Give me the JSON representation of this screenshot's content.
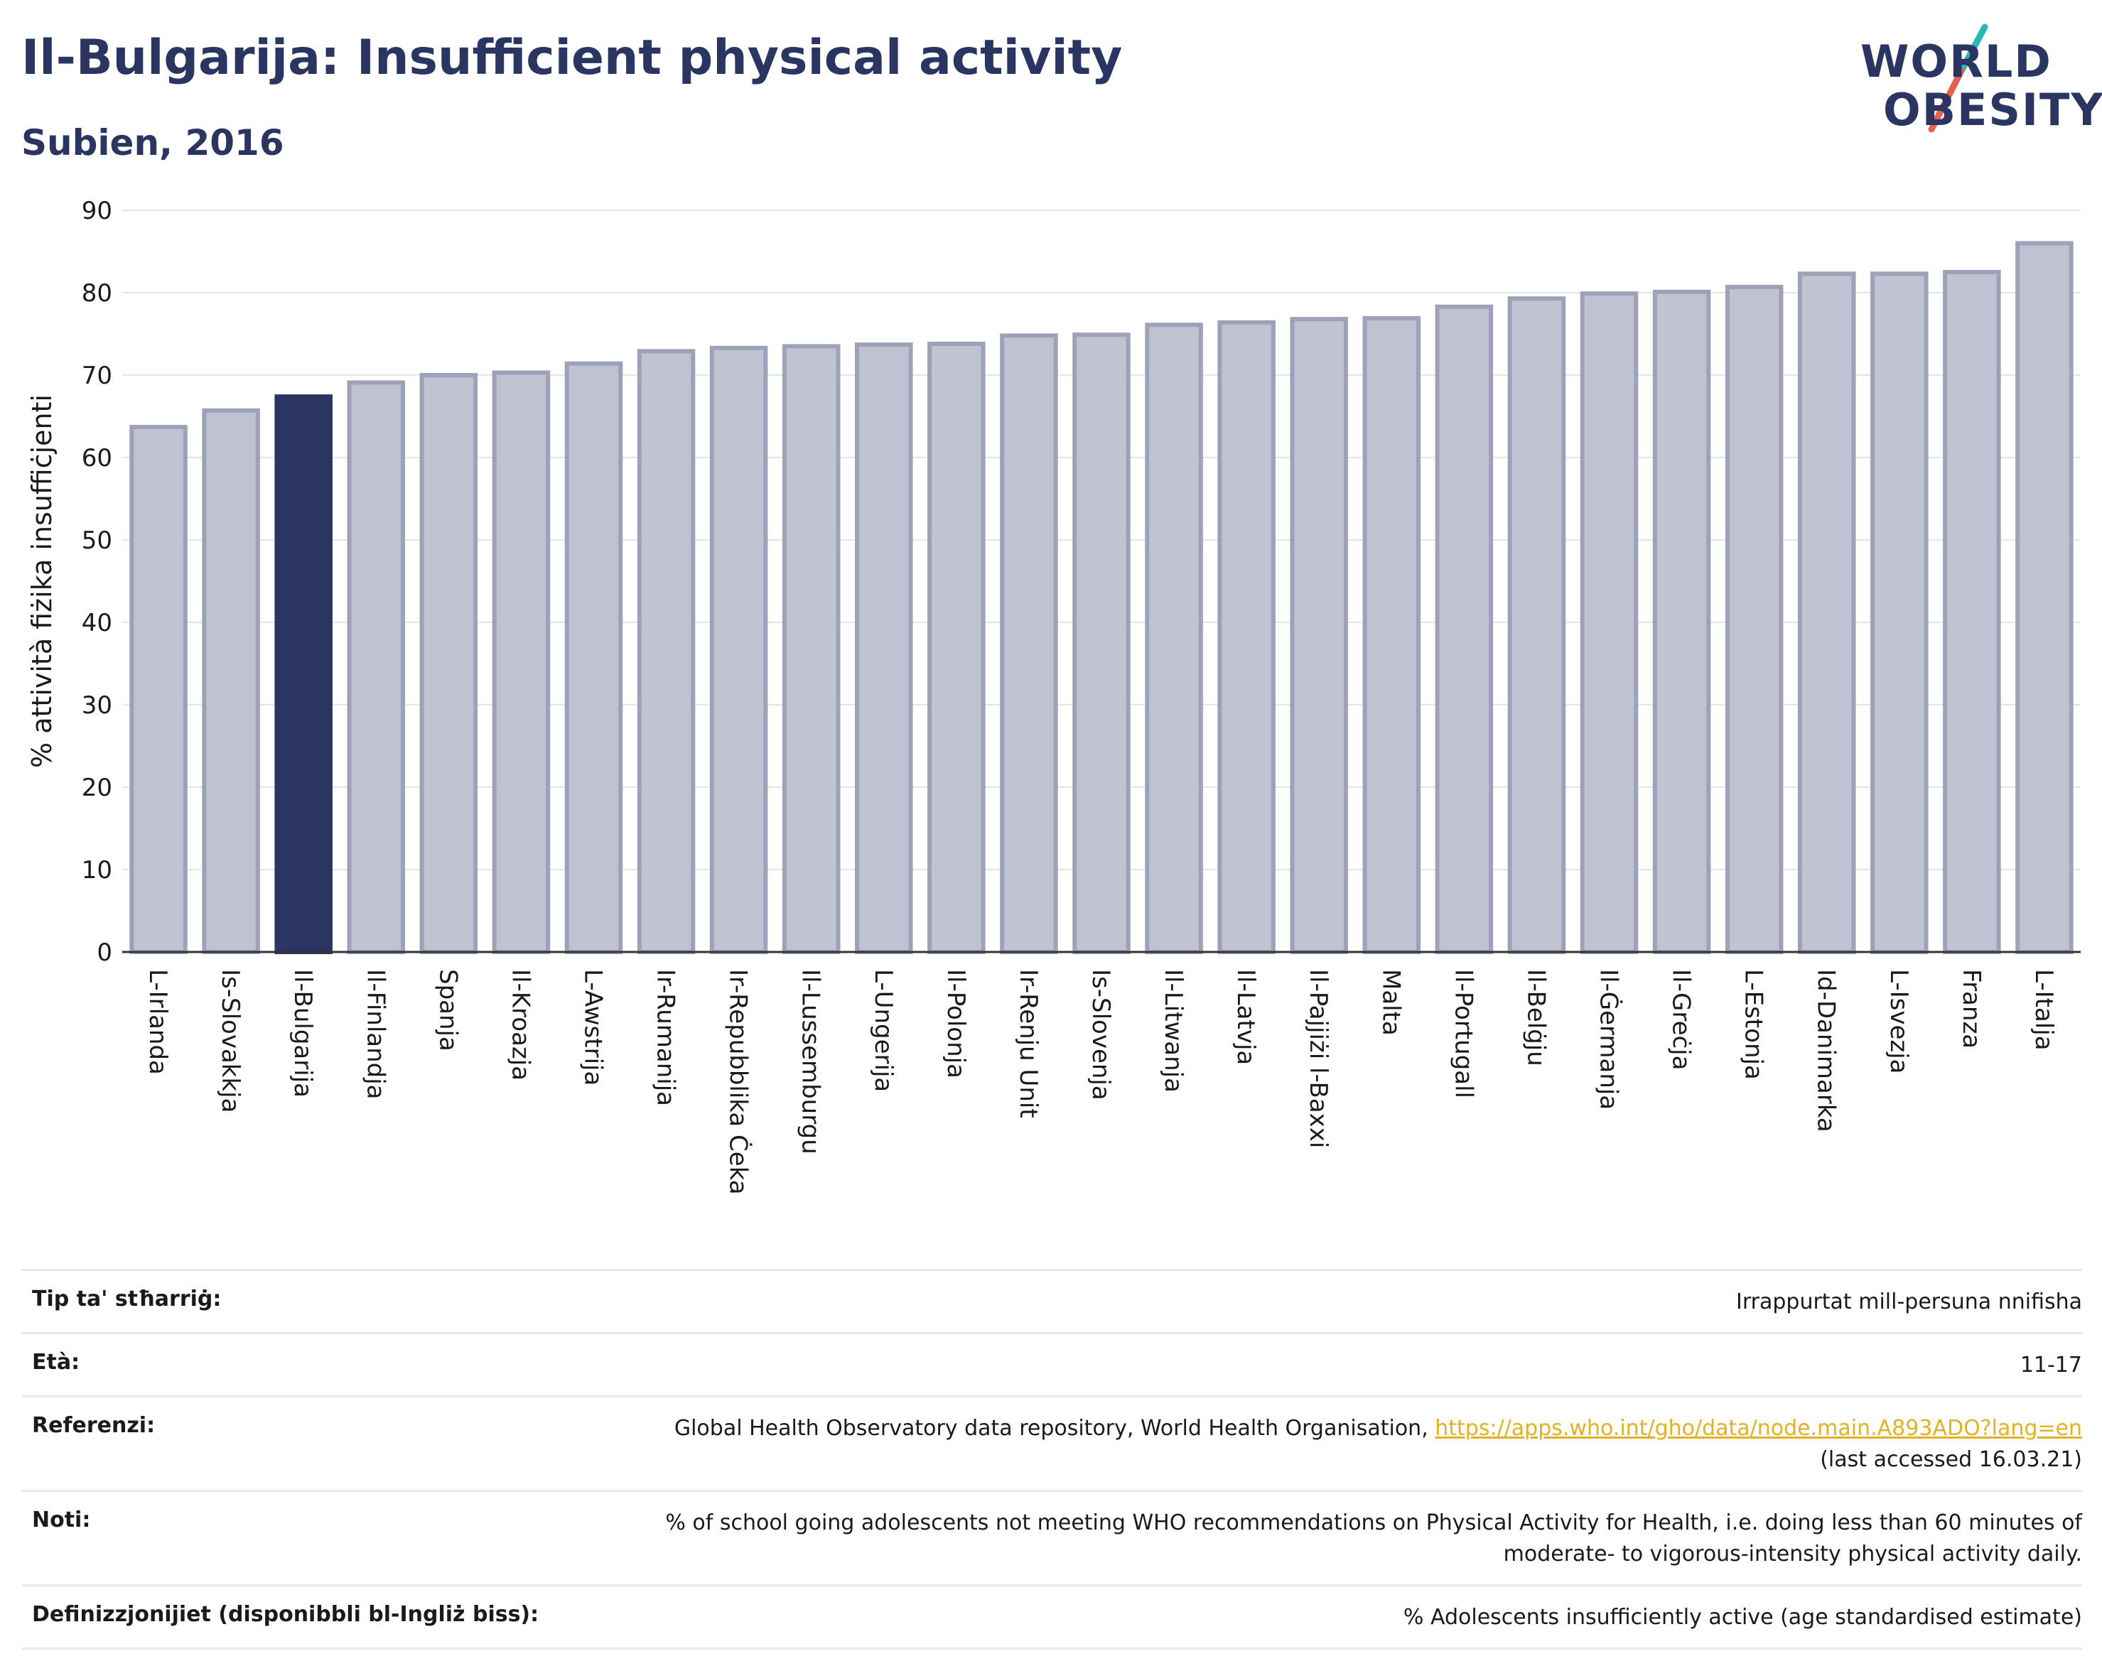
{
  "title": "Il-Bulgarija: Insufficient physical activity",
  "subtitle": "Subien, 2016",
  "logo": {
    "line1": "WORLD",
    "line2": "OBESITY"
  },
  "colors": {
    "highlight": "#2b3561",
    "bar": "#bfc2d0",
    "bar_stroke": "#9da2b8",
    "grid": "#e3e5ec",
    "link": "#e3b124",
    "logo_teal": "#2bb7b3",
    "logo_red": "#e4634f"
  },
  "chart_data": {
    "type": "bar",
    "ylabel": "% attività fiżika insuffiċjenti",
    "ylim": [
      0,
      90
    ],
    "yticks": [
      0,
      10,
      20,
      30,
      40,
      50,
      60,
      70,
      80,
      90
    ],
    "grid": true,
    "highlight": "Il-Bulgarija",
    "categories": [
      "L-Irlanda",
      "Is-Slovakkja",
      "Il-Bulgarija",
      "Il-Finlandja",
      "Spanja",
      "Il-Kroazja",
      "L-Awstrija",
      "Ir-Rumanija",
      "Ir-Repubblika Ċeka",
      "Il-Lussemburgu",
      "L-Ungerija",
      "Il-Polonja",
      "Ir-Renju Unit",
      "Is-Slovenja",
      "Il-Litwanja",
      "Il-Latvja",
      "Il-Pajjiżi l-Baxxi",
      "Malta",
      "Il-Portugall",
      "Il-Belġju",
      "Il-Ġermanja",
      "Il-Greċja",
      "L-Estonja",
      "Id-Danimarka",
      "L-Isvezja",
      "Franza",
      "L-Italja"
    ],
    "values": [
      63.7,
      65.7,
      67.4,
      69.1,
      70.0,
      70.3,
      71.4,
      72.9,
      73.3,
      73.5,
      73.7,
      73.8,
      74.8,
      74.9,
      76.1,
      76.4,
      76.8,
      76.9,
      78.3,
      79.3,
      79.9,
      80.1,
      80.7,
      82.3,
      82.3,
      82.5,
      86.0
    ]
  },
  "meta": [
    {
      "key": "Tip ta' stħarriġ:",
      "value": "Irrappurtat mill-persuna nnifisha"
    },
    {
      "key": "Età:",
      "value": "11-17"
    },
    {
      "key": "Referenzi:",
      "value": "Global Health Observatory data repository, World Health Organisation, ",
      "link": "https://apps.who.int/gho/data/node.main.A893ADO?lang=en",
      "value_after": "(last accessed 16.03.21)"
    },
    {
      "key": "Noti:",
      "value": "% of school going adolescents not meeting WHO recommendations on Physical Activity for Health, i.e. doing less than 60 minutes of moderate- to vigorous-intensity physical activity daily."
    },
    {
      "key": "Definizzjonijiet (disponibbli bl-Ingliż biss):",
      "value": "% Adolescents insufficiently active (age standardised estimate)"
    }
  ]
}
